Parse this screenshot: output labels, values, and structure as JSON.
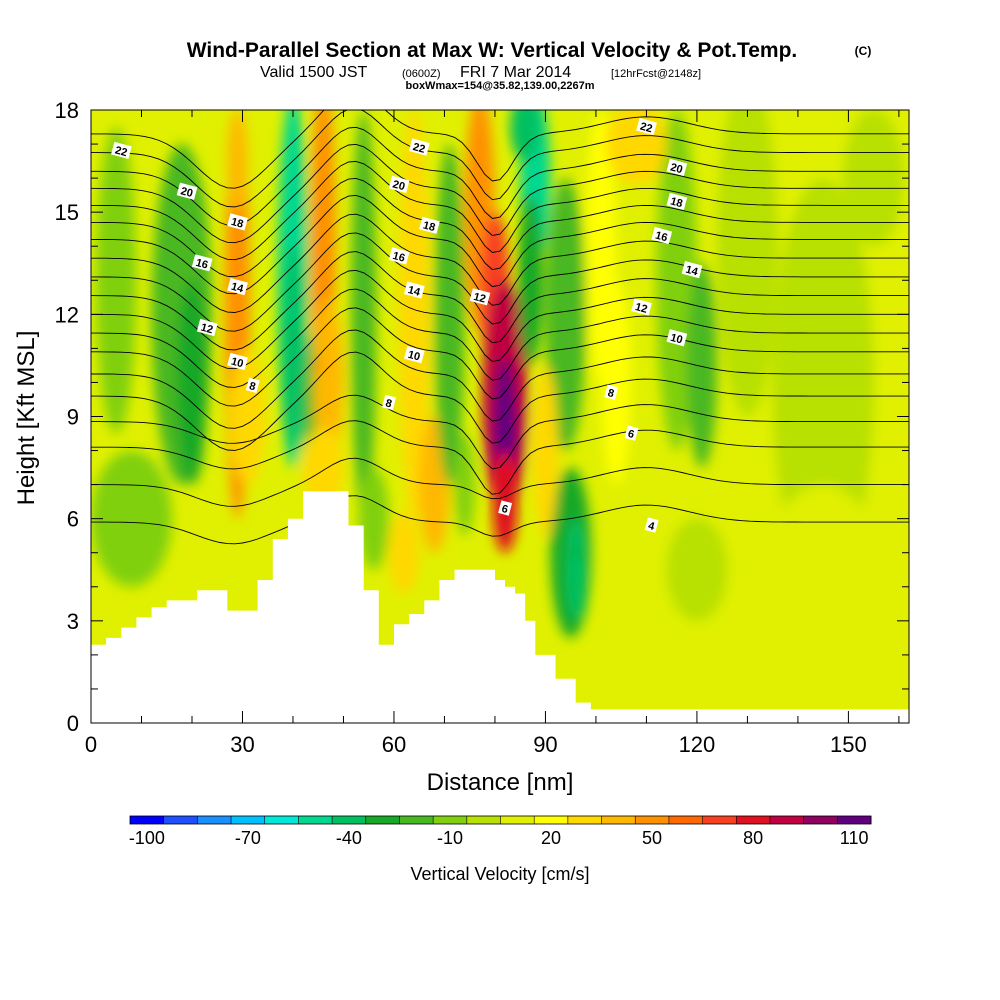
{
  "title": {
    "main": "Wind-Parallel Section at Max W: Vertical Velocity & Pot.Temp.",
    "main_unit": "(C)",
    "valid_a": "Valid 1500 JST",
    "valid_b": "(0600Z)",
    "valid_c": "FRI 7 Mar 2014",
    "valid_d": "[12hrFcst@2148z]",
    "box": "boxWmax=154@35.82,139.00,2267m"
  },
  "chart_data": {
    "type": "heatmap",
    "xlabel": "Distance [nm]",
    "ylabel": "Height [Kft MSL]",
    "xlim": [
      0,
      162
    ],
    "ylim": [
      0,
      18
    ],
    "xticks": [
      "0",
      "30",
      "60",
      "90",
      "120",
      "150"
    ],
    "yticks": [
      "0",
      "3",
      "6",
      "9",
      "12",
      "15",
      "18"
    ],
    "colorbar": {
      "title": "Vertical Velocity [cm/s]",
      "labels": [
        "-100",
        "-70",
        "-40",
        "-10",
        "20",
        "50",
        "80",
        "110"
      ],
      "colors": [
        "#0000ff",
        "#1e50ff",
        "#1a90ff",
        "#00c0ff",
        "#00e8d8",
        "#00d890",
        "#00c060",
        "#18a828",
        "#48b820",
        "#80d010",
        "#b8e000",
        "#e0f000",
        "#ffff00",
        "#ffd800",
        "#ffb800",
        "#ff9000",
        "#ff6800",
        "#f84020",
        "#e01020",
        "#c00040",
        "#900060",
        "#600080"
      ]
    },
    "terrain_kft": [
      [
        0,
        2.3
      ],
      [
        3,
        2.5
      ],
      [
        6,
        2.8
      ],
      [
        9,
        3.1
      ],
      [
        12,
        3.4
      ],
      [
        15,
        3.6
      ],
      [
        21,
        3.9
      ],
      [
        27,
        3.3
      ],
      [
        33,
        4.2
      ],
      [
        36,
        5.4
      ],
      [
        39,
        6.0
      ],
      [
        42,
        6.8
      ],
      [
        48,
        6.8
      ],
      [
        51,
        5.8
      ],
      [
        54,
        3.9
      ],
      [
        57,
        2.3
      ],
      [
        60,
        2.9
      ],
      [
        63,
        3.2
      ],
      [
        66,
        3.6
      ],
      [
        69,
        4.2
      ],
      [
        72,
        4.5
      ],
      [
        78,
        4.5
      ],
      [
        80,
        4.2
      ],
      [
        82,
        4.0
      ],
      [
        84,
        3.8
      ],
      [
        86,
        3.0
      ],
      [
        88,
        2.0
      ],
      [
        92,
        1.3
      ],
      [
        96,
        0.6
      ],
      [
        99,
        0.4
      ],
      [
        162,
        0.4
      ]
    ],
    "theta_contours": {
      "levels": [
        4,
        6,
        8,
        10,
        12,
        14,
        16,
        18,
        20,
        22
      ],
      "labels": [
        {
          "text": "22",
          "x": 6,
          "y": 16.8
        },
        {
          "text": "20",
          "x": 19,
          "y": 15.6
        },
        {
          "text": "18",
          "x": 29,
          "y": 14.7
        },
        {
          "text": "16",
          "x": 22,
          "y": 13.5
        },
        {
          "text": "14",
          "x": 29,
          "y": 12.8
        },
        {
          "text": "12",
          "x": 23,
          "y": 11.6
        },
        {
          "text": "10",
          "x": 29,
          "y": 10.6
        },
        {
          "text": "8",
          "x": 32,
          "y": 9.9
        },
        {
          "text": "22",
          "x": 65,
          "y": 16.9
        },
        {
          "text": "20",
          "x": 61,
          "y": 15.8
        },
        {
          "text": "18",
          "x": 67,
          "y": 14.6
        },
        {
          "text": "16",
          "x": 61,
          "y": 13.7
        },
        {
          "text": "14",
          "x": 64,
          "y": 12.7
        },
        {
          "text": "12",
          "x": 77,
          "y": 12.5
        },
        {
          "text": "10",
          "x": 64,
          "y": 10.8
        },
        {
          "text": "8",
          "x": 59,
          "y": 9.4
        },
        {
          "text": "6",
          "x": 82,
          "y": 6.3
        },
        {
          "text": "22",
          "x": 110,
          "y": 17.5
        },
        {
          "text": "20",
          "x": 116,
          "y": 16.3
        },
        {
          "text": "18",
          "x": 116,
          "y": 15.3
        },
        {
          "text": "16",
          "x": 113,
          "y": 14.3
        },
        {
          "text": "14",
          "x": 119,
          "y": 13.3
        },
        {
          "text": "12",
          "x": 109,
          "y": 12.2
        },
        {
          "text": "10",
          "x": 116,
          "y": 11.3
        },
        {
          "text": "8",
          "x": 103,
          "y": 9.7
        },
        {
          "text": "6",
          "x": 107,
          "y": 8.5
        },
        {
          "text": "4",
          "x": 111,
          "y": 5.8
        }
      ]
    },
    "w_features": [
      {
        "name": "max updraft",
        "x": 82,
        "y": 8.5,
        "value": 110
      },
      {
        "name": "updraft",
        "x": 45,
        "y": 10.5,
        "value": 50
      },
      {
        "name": "updraft",
        "x": 29,
        "y": 12.0,
        "value": 40
      },
      {
        "name": "downdraft",
        "x": 88,
        "y": 16.0,
        "value": -60
      },
      {
        "name": "downdraft",
        "x": 40,
        "y": 12.0,
        "value": -60
      },
      {
        "name": "downdraft",
        "x": 96,
        "y": 5.0,
        "value": -40
      }
    ]
  }
}
